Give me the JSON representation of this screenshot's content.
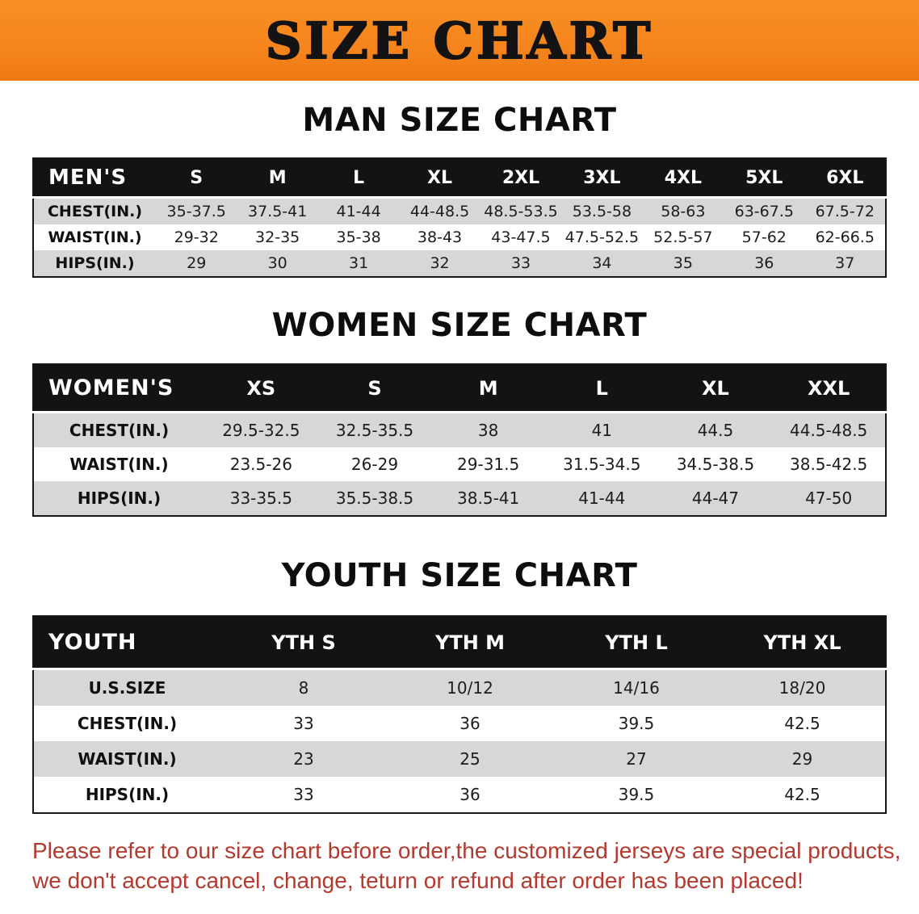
{
  "banner": {
    "title": "SIZE CHART"
  },
  "men": {
    "heading": "MAN SIZE CHART",
    "table": {
      "header": [
        "MEN'S",
        "S",
        "M",
        "L",
        "XL",
        "2XL",
        "3XL",
        "4XL",
        "5XL",
        "6XL"
      ],
      "rows": [
        {
          "label": "CHEST(IN.)",
          "values": [
            "35-37.5",
            "37.5-41",
            "41-44",
            "44-48.5",
            "48.5-53.5",
            "53.5-58",
            "58-63",
            "63-67.5",
            "67.5-72"
          ]
        },
        {
          "label": "WAIST(IN.)",
          "values": [
            "29-32",
            "32-35",
            "35-38",
            "38-43",
            "43-47.5",
            "47.5-52.5",
            "52.5-57",
            "57-62",
            "62-66.5"
          ]
        },
        {
          "label": "HIPS(IN.)",
          "values": [
            "29",
            "30",
            "31",
            "32",
            "33",
            "34",
            "35",
            "36",
            "37"
          ]
        }
      ]
    }
  },
  "women": {
    "heading": "WOMEN SIZE CHART",
    "table": {
      "header": [
        "WOMEN'S",
        "XS",
        "S",
        "M",
        "L",
        "XL",
        "XXL"
      ],
      "rows": [
        {
          "label": "CHEST(IN.)",
          "values": [
            "29.5-32.5",
            "32.5-35.5",
            "38",
            "41",
            "44.5",
            "44.5-48.5"
          ]
        },
        {
          "label": "WAIST(IN.)",
          "values": [
            "23.5-26",
            "26-29",
            "29-31.5",
            "31.5-34.5",
            "34.5-38.5",
            "38.5-42.5"
          ]
        },
        {
          "label": "HIPS(IN.)",
          "values": [
            "33-35.5",
            "35.5-38.5",
            "38.5-41",
            "41-44",
            "44-47",
            "47-50"
          ]
        }
      ]
    }
  },
  "youth": {
    "heading": "YOUTH SIZE CHART",
    "table": {
      "header": [
        "YOUTH",
        "YTH S",
        "YTH M",
        "YTH L",
        "YTH XL"
      ],
      "rows": [
        {
          "label": "U.S.SIZE",
          "values": [
            "8",
            "10/12",
            "14/16",
            "18/20"
          ]
        },
        {
          "label": "CHEST(IN.)",
          "values": [
            "33",
            "36",
            "39.5",
            "42.5"
          ]
        },
        {
          "label": "WAIST(IN.)",
          "values": [
            "23",
            "25",
            "27",
            "29"
          ]
        },
        {
          "label": "HIPS(IN.)",
          "values": [
            "33",
            "36",
            "39.5",
            "42.5"
          ]
        }
      ]
    }
  },
  "disclaimer": {
    "line1": "Please refer to our size chart before order,the customized jerseys are special products,",
    "line2": "we don't accept cancel, change, teturn or refund after order has been placed!"
  },
  "colors": {
    "banner_orange": "#F5831C",
    "table_header_black": "#131313",
    "row_stripe_gray": "#D7D7D7",
    "disclaimer_red": "#B23A2E"
  }
}
